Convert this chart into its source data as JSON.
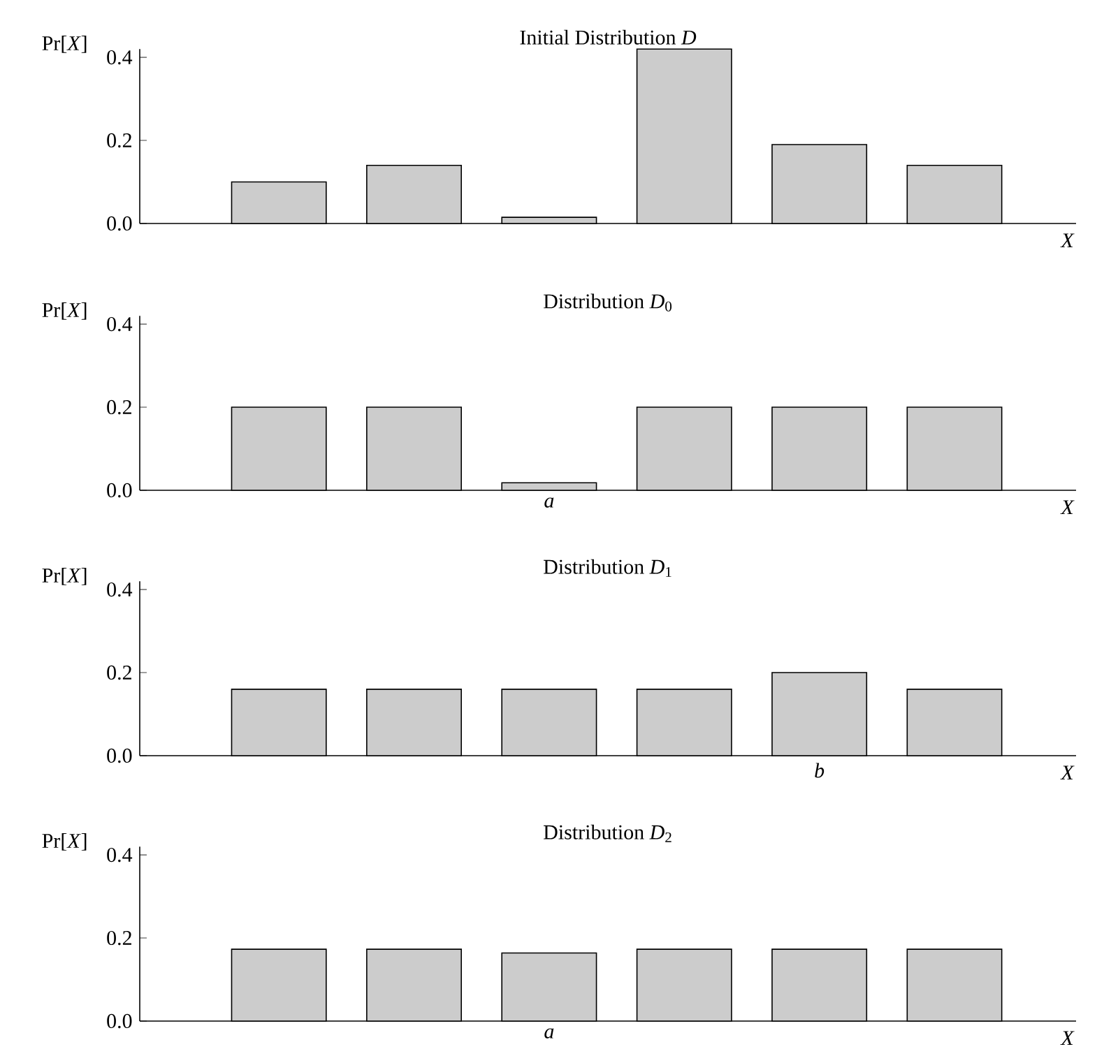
{
  "chart_data": [
    {
      "type": "bar",
      "title": "Initial Distribution *D*",
      "xlabel": "*X*",
      "ylabel": "Pr[*X*]",
      "categories": [
        null,
        null,
        null,
        null,
        null,
        null
      ],
      "values": [
        0.1,
        0.14,
        0.015,
        0.42,
        0.19,
        0.14
      ],
      "color": "#cccccc",
      "ylim": [
        0,
        0.42
      ],
      "yticks": [
        {
          "value": 0,
          "label": "0.0"
        },
        {
          "value": 0.2,
          "label": "0.2"
        },
        {
          "value": 0.4,
          "label": "0.4"
        }
      ]
    },
    {
      "type": "bar",
      "title": "Distribution *D*$_{0}$",
      "xlabel": "*X*",
      "ylabel": "Pr[*X*]",
      "categories": [
        null,
        null,
        "a",
        null,
        null,
        null
      ],
      "values": [
        0.2,
        0.2,
        0.018,
        0.2,
        0.2,
        0.2
      ],
      "color": "#cccccc",
      "ylim": [
        0,
        0.42
      ],
      "yticks": [
        {
          "value": 0,
          "label": "0.0"
        },
        {
          "value": 0.2,
          "label": "0.2"
        },
        {
          "value": 0.4,
          "label": "0.4"
        }
      ]
    },
    {
      "type": "bar",
      "title": "Distribution *D*$_{1}$",
      "xlabel": "*X*",
      "ylabel": "Pr[*X*]",
      "categories": [
        null,
        null,
        null,
        null,
        "b",
        null
      ],
      "values": [
        0.16,
        0.16,
        0.16,
        0.16,
        0.2,
        0.16
      ],
      "color": "#cccccc",
      "ylim": [
        0,
        0.42
      ],
      "yticks": [
        {
          "value": 0,
          "label": "0.0"
        },
        {
          "value": 0.2,
          "label": "0.2"
        },
        {
          "value": 0.4,
          "label": "0.4"
        }
      ]
    },
    {
      "type": "bar",
      "title": "Distribution *D*$_{2}$",
      "xlabel": "*X*",
      "ylabel": "Pr[*X*]",
      "categories": [
        null,
        null,
        "a",
        null,
        null,
        null
      ],
      "values": [
        0.173,
        0.173,
        0.164,
        0.173,
        0.173,
        0.173
      ],
      "color": "#cccccc",
      "ylim": [
        0,
        0.42
      ],
      "yticks": [
        {
          "value": 0,
          "label": "0.0"
        },
        {
          "value": 0.2,
          "label": "0.2"
        },
        {
          "value": 0.4,
          "label": "0.4"
        }
      ]
    }
  ]
}
